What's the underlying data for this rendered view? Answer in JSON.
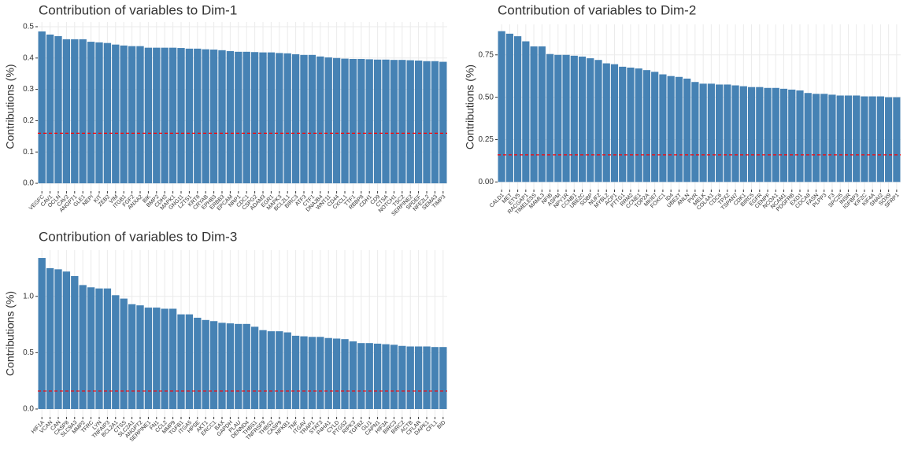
{
  "chart_data": [
    {
      "type": "bar",
      "title": "Contribution of variables to Dim-1",
      "ylabel": "Contributions (%)",
      "color": "#4682b4",
      "hline": 0.16,
      "hline_color": "#ff0000",
      "grid": true,
      "categories": [
        "VEGFC",
        "CAV1",
        "OCLN",
        "CAV2",
        "ANGPT1",
        "GLE1",
        "NEPI",
        "KIT",
        "ZEB2",
        "VIM",
        "ITGB1",
        "FGF2",
        "ANXA2",
        "BIK",
        "BMP2",
        "CDH2",
        "MAPK1",
        "GNG11",
        "LZTS1",
        "KRT8",
        "CRYAB",
        "EPHB3",
        "ERBB3",
        "EPCAM",
        "NRP1",
        "CDC1",
        "CSPG2",
        "ADAM3",
        "EGR1",
        "MAPK3",
        "BCL2L1",
        "BIRC3",
        "ATF3",
        "CTF1",
        "DNAJB4",
        "WNT11",
        "CD44",
        "CXCL1",
        "TTF1",
        "RBBP8",
        "CDH1",
        "CD9",
        "CTSA",
        "NOTCH1",
        "TSC2",
        "SERPINE2",
        "SPDEF",
        "NFE2L2",
        "SEMA3",
        "TIMP3"
      ],
      "values": [
        0.485,
        0.475,
        0.47,
        0.46,
        0.46,
        0.46,
        0.452,
        0.45,
        0.448,
        0.443,
        0.44,
        0.438,
        0.438,
        0.433,
        0.433,
        0.433,
        0.433,
        0.432,
        0.43,
        0.43,
        0.428,
        0.427,
        0.425,
        0.422,
        0.42,
        0.42,
        0.419,
        0.418,
        0.418,
        0.416,
        0.415,
        0.412,
        0.41,
        0.41,
        0.405,
        0.402,
        0.4,
        0.398,
        0.397,
        0.397,
        0.396,
        0.395,
        0.395,
        0.394,
        0.394,
        0.393,
        0.392,
        0.39,
        0.39,
        0.388
      ],
      "ylim": [
        -0.025,
        0.515
      ],
      "yticks": [
        {
          "value": 0,
          "label": "0.0"
        },
        0.1,
        0.2,
        0.3,
        0.4,
        0.5
      ]
    },
    {
      "type": "bar",
      "title": "Contribution of variables to Dim-2",
      "ylabel": "Contributions (%)",
      "color": "#4682b4",
      "hline": 0.16,
      "hline_color": "#ff0000",
      "grid": true,
      "categories": [
        "CALD1",
        "MET",
        "ETV5",
        "RACGAP1",
        "TIMELESS",
        "MAML3",
        "NFIB",
        "ASPM",
        "NPY1R",
        "CCNB1",
        "UBE2C",
        "SOBP",
        "NUF2",
        "MYBL2",
        "ACP1",
        "PTTG1",
        "RRM2",
        "CCNE1",
        "TOP2A",
        "MKI67",
        "FOXC1",
        "ID4",
        "UBE2T",
        "ANLN",
        "PVR",
        "MELK",
        "COL4A1",
        "CDC6",
        "TPX2",
        "TSPAN7",
        "CDK1",
        "BIRC5",
        "EGFR",
        "CENPF",
        "NCOA1",
        "NCAM1",
        "PDGFRB",
        "EXO1",
        "CDCA8",
        "FASN",
        "PLPP3",
        "F3",
        "SPC25",
        "INSR",
        "IGFBP3",
        "KIF2C",
        "KIF4A",
        "SNAI2",
        "SOX9",
        "SFRP1"
      ],
      "values": [
        0.89,
        0.875,
        0.86,
        0.83,
        0.8,
        0.8,
        0.755,
        0.75,
        0.75,
        0.745,
        0.74,
        0.73,
        0.72,
        0.7,
        0.695,
        0.68,
        0.675,
        0.67,
        0.66,
        0.65,
        0.635,
        0.625,
        0.62,
        0.61,
        0.59,
        0.58,
        0.58,
        0.575,
        0.575,
        0.57,
        0.565,
        0.56,
        0.56,
        0.555,
        0.555,
        0.55,
        0.545,
        0.54,
        0.525,
        0.52,
        0.52,
        0.515,
        0.51,
        0.51,
        0.51,
        0.505,
        0.505,
        0.505,
        0.5,
        0.5
      ],
      "ylim": [
        -0.045,
        0.93
      ],
      "yticks": [
        {
          "value": 0,
          "label": "0.00"
        },
        0.25,
        {
          "value": 0.5,
          "label": "0.50"
        },
        0.75
      ]
    },
    {
      "type": "bar",
      "title": "Contribution of variables to Dim-3",
      "ylabel": "Contributions (%)",
      "color": "#4682b4",
      "hline": 0.16,
      "hline_color": "#ff0000",
      "grid": true,
      "categories": [
        "HIF1A",
        "VCAN",
        "CAN",
        "CASP8",
        "SLC9A3",
        "MMP2",
        "TFRC",
        "LYN",
        "TNFAIP3",
        "BCL2A1",
        "CTSS",
        "SLC2A1",
        "ANGPT2",
        "SERPINE1",
        "FN1",
        "CCL2",
        "MMP9",
        "TGFB1",
        "ITGA5",
        "HPSE",
        "AKT1",
        "ERCC1",
        "BAX",
        "GAPDH",
        "PLAU",
        "DENND4",
        "THBS1",
        "TNFRSF9",
        "THBS2",
        "CASP9",
        "NFKB1",
        "TNF",
        "ITGAV",
        "TRAP1",
        "STAT3",
        "P4HA1",
        "CYLD",
        "PTGS2",
        "RIPK3",
        "TGFB2",
        "GLI1",
        "CAPN1",
        "HIF3A",
        "BIRC3",
        "BIRC2",
        "ACTB",
        "CFLAR",
        "DAPK1",
        "CFL1",
        "BID"
      ],
      "values": [
        1.34,
        1.25,
        1.24,
        1.22,
        1.18,
        1.1,
        1.08,
        1.07,
        1.07,
        1.01,
        0.98,
        0.93,
        0.92,
        0.9,
        0.9,
        0.89,
        0.89,
        0.84,
        0.84,
        0.81,
        0.79,
        0.78,
        0.765,
        0.76,
        0.755,
        0.755,
        0.73,
        0.7,
        0.69,
        0.69,
        0.68,
        0.65,
        0.645,
        0.64,
        0.64,
        0.63,
        0.625,
        0.62,
        0.6,
        0.585,
        0.585,
        0.58,
        0.575,
        0.57,
        0.56,
        0.555,
        0.555,
        0.555,
        0.55,
        0.55
      ],
      "ylim": [
        -0.07,
        1.41
      ],
      "yticks": [
        {
          "value": 0,
          "label": "0.0"
        },
        0.5,
        {
          "value": 1,
          "label": "1.0"
        }
      ]
    }
  ]
}
